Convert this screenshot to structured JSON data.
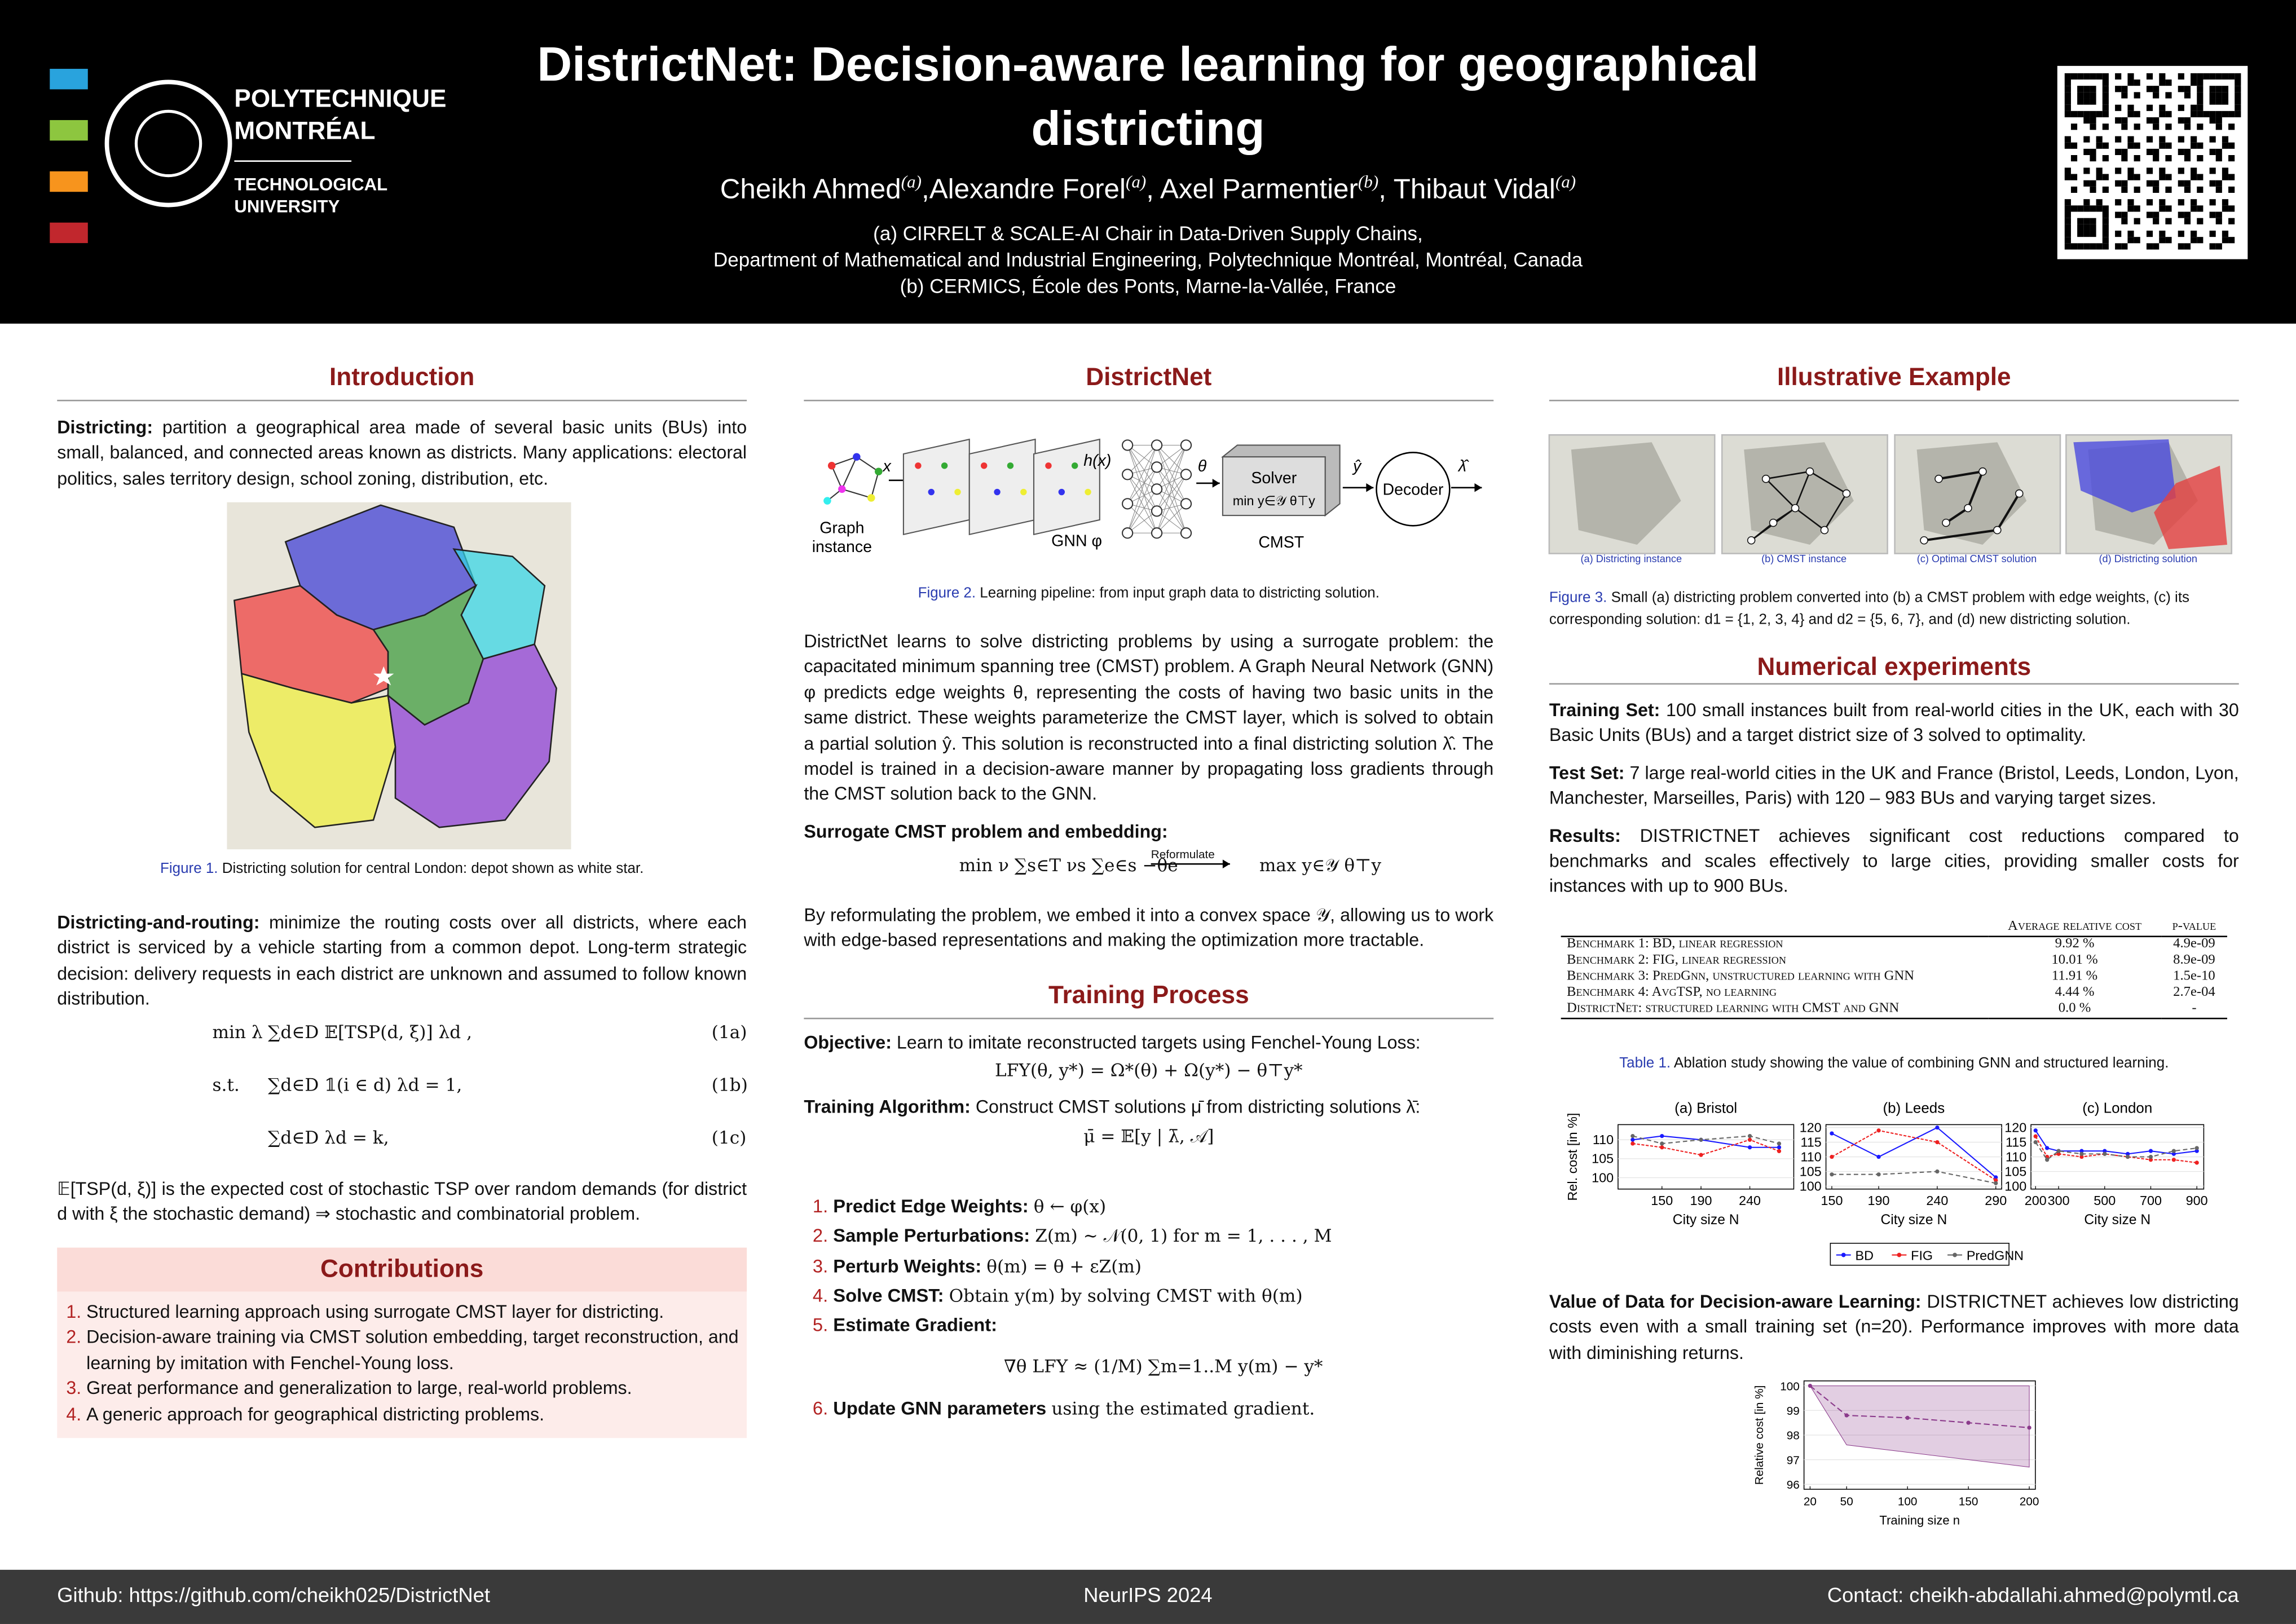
{
  "header": {
    "title": "DistrictNet: Decision-aware learning for geographical districting",
    "authors": [
      {
        "name": "Cheikh Ahmed",
        "aff": "(a)"
      },
      {
        "name": ",Alexandre Forel",
        "aff": "(a)"
      },
      {
        "name": ", Axel Parmentier",
        "aff": "(b)"
      },
      {
        "name": ", Thibaut Vidal",
        "aff": "(a)"
      }
    ],
    "affiliations": [
      "(a) CIRRELT & SCALE-AI Chair in Data-Driven Supply Chains,",
      "Department of Mathematical and Industrial Engineering, Polytechnique Montréal, Montréal, Canada",
      "(b) CERMICS, École des Ponts, Marne-la-Vallée, France"
    ],
    "logo": [
      "POLYTECHNIQUE",
      "MONTRÉAL",
      "TECHNOLOGICAL",
      "UNIVERSITY"
    ]
  },
  "introduction": {
    "heading": "Introduction",
    "districting": {
      "lead": "Districting:",
      "text": "partition a geographical area made of several basic units (BUs) into small, balanced, and connected areas known as districts. Many applications: electoral politics, sales territory design, school zoning, distribution, etc."
    },
    "figure_label": "Figure 1.",
    "figure_caption": "Districting solution for central London: depot shown as white star.",
    "routing": {
      "lead": "Districting-and-routing:",
      "text": "minimize the routing costs over all districts, where each district is serviced by a vehicle starting from a common depot. Long-term strategic decision: delivery requests in each district are unknown and assumed to follow known distribution."
    },
    "equations": [
      {
        "lhs": "min λ",
        "body": "∑d∈D 𝔼[TSP(d, ξ)] λd ,",
        "tag": "(1a)"
      },
      {
        "lhs": "s.t.",
        "body": "∑d∈D 𝟙(i ∈ d) λd = 1,",
        "tag": "(1b)"
      },
      {
        "body": "∑d∈D λd = k,",
        "tag": "(1c)"
      }
    ],
    "note": "𝔼[TSP(d, ξ)] is the expected cost of stochastic TSP over random demands (for district d with ξ the stochastic demand) ⇒ stochastic and combinatorial problem."
  },
  "contributions": {
    "heading": "Contributions",
    "items": [
      "Structured learning approach using surrogate CMST layer for districting.",
      "Decision-aware training via CMST solution embedding, target reconstruction, and learning by imitation with Fenchel-Young loss.",
      "Great performance and generalization to large, real-world problems.",
      "A generic approach for geographical districting problems."
    ]
  },
  "districtnet": {
    "heading": "DistrictNet",
    "diagram": {
      "graph_instance": [
        "Graph",
        "instance"
      ],
      "x": "x",
      "hx": "h(x)",
      "theta": "θ",
      "solver": "Solver",
      "solver_formula": "min y∈𝒴 θ⊤y",
      "yhat": "ŷ",
      "decoder": "Decoder",
      "lambdahat": "λ̂",
      "gnn": "GNN φ",
      "cmst": "CMST"
    },
    "figure_label": "Figure 2.",
    "figure_caption": "Learning pipeline: from input graph data to districting solution.",
    "paragraph": "DistrictNet learns to solve districting problems by using a surrogate problem: the capacitated minimum spanning tree (CMST) problem. A Graph Neural Network (GNN) φ predicts edge weights θ, representing the costs of having two basic units in the same district. These weights parameterize the CMST layer, which is solved to obtain a partial solution ŷ. This solution is reconstructed into a final districting solution λ̂. The model is trained in a decision-aware manner by propagating loss gradients through the CMST solution back to the GNN.",
    "surrogate_heading": "Surrogate CMST problem and embedding:",
    "surrogate_left": "min ν ∑s∈T νs ∑e∈s −θe",
    "surrogate_arrow": "Reformulate",
    "surrogate_right": "max y∈𝒴 θ⊤y",
    "paragraph2": "By reformulating the problem, we embed it into a convex space 𝒴, allowing us to work with edge-based representations and making the optimization more tractable."
  },
  "training": {
    "heading": "Training Process",
    "objective": {
      "lead": "Objective:",
      "text": "Learn to imitate reconstructed targets using Fenchel-Young Loss:"
    },
    "objective_formula": "LFY(θ, y*) = Ω*(θ) + Ω(y*) − θ⊤y*",
    "algorithm": {
      "lead": "Training Algorithm:",
      "text": "Construct CMST solutions μ̄ from districting solutions λ̄:"
    },
    "algorithm_formula": "μ̄ = 𝔼[y | λ̄, 𝒜]",
    "steps": [
      {
        "lead": "Predict Edge Weights:",
        "text": "θ ← φ(x)"
      },
      {
        "lead": "Sample Perturbations:",
        "text": "Z(m) ∼ 𝒩(0, 1) for m = 1, . . . , M"
      },
      {
        "lead": "Perturb Weights:",
        "text": "θ(m) = θ + εZ(m)"
      },
      {
        "lead": "Solve CMST:",
        "text": "Obtain y(m) by solving CMST with θ(m)"
      },
      {
        "lead": "Estimate Gradient:",
        "formula": "∇θ LFY ≈ (1/M) ∑m=1..M y(m) − y*"
      },
      {
        "lead": "Update GNN parameters",
        "text": "using the estimated gradient."
      }
    ]
  },
  "example": {
    "heading": "Illustrative Example",
    "panels": [
      "(a) Districting instance",
      "(b) CMST instance",
      "(c) Optimal CMST solution",
      "(d) Districting solution"
    ],
    "figure_label": "Figure 3.",
    "figure_caption": "Small (a) districting problem converted into (b) a CMST problem with edge weights, (c) its corresponding solution: d1 = {1, 2, 3, 4} and d2 = {5, 6, 7}, and (d) new districting solution."
  },
  "experiments": {
    "heading": "Numerical experiments",
    "training_set": {
      "lead": "Training Set:",
      "text": "100 small instances built from real-world cities in the UK, each with 30 Basic Units (BUs) and a target district size of 3 solved to optimality."
    },
    "test_set": {
      "lead": "Test Set:",
      "text": "7 large real-world cities in the UK and France (Bristol, Leeds, London, Lyon, Manchester, Marseilles, Paris) with 120 – 983 BUs and varying target sizes."
    },
    "results": {
      "lead": "Results:",
      "text": "DISTRICTNET achieves significant cost reductions compared to benchmarks and scales effectively to large cities, providing smaller costs for instances with up to 900 BUs."
    },
    "table": {
      "header": [
        "Average relative cost",
        "p-value"
      ],
      "rows": [
        [
          "Benchmark 1: BD, linear regression",
          "9.92 %",
          "4.9e-09"
        ],
        [
          "Benchmark 2: FIG, linear regression",
          "10.01 %",
          "8.9e-09"
        ],
        [
          "Benchmark 3: PredGnn, unstructured learning with GNN",
          "11.91 %",
          "1.5e-10"
        ],
        [
          "Benchmark 4: AvgTSP, no learning",
          "4.44 %",
          "2.7e-04"
        ],
        [
          "DistrictNet: structured learning with CMST and GNN",
          "0.0 %",
          "-"
        ]
      ],
      "label": "Table 1.",
      "caption": "Ablation study showing the value of combining GNN and structured learning."
    },
    "city_charts": [
      {
        "type": "line",
        "title": "(a) Bristol",
        "ylabel": "Rel. cost [in %]",
        "xlabel": "City size N",
        "x": [
          120,
          150,
          190,
          240,
          270
        ],
        "xlim": [
          105,
          285
        ],
        "xticks": [
          150,
          190,
          240
        ],
        "ylim": [
          97,
          114
        ],
        "yticks": [
          100,
          105,
          110
        ],
        "series": [
          {
            "name": "BD",
            "color": "#1a1aff",
            "values": [
              110,
              111,
              110,
              108,
              108
            ]
          },
          {
            "name": "FIG",
            "color": "#ee2020",
            "values": [
              109,
              108,
              106,
              110,
              107
            ]
          },
          {
            "name": "PredGNN",
            "color": "#666666",
            "values": [
              111,
              109,
              110,
              111,
              109
            ]
          }
        ]
      },
      {
        "type": "line",
        "title": "(b) Leeds",
        "xlabel": "City size N",
        "x": [
          150,
          190,
          240,
          290
        ],
        "xlim": [
          145,
          295
        ],
        "xticks": [
          150,
          190,
          240,
          290
        ],
        "ylim": [
          99,
          121
        ],
        "yticks": [
          100,
          105,
          110,
          115,
          120
        ],
        "series": [
          {
            "name": "BD",
            "color": "#1a1aff",
            "values": [
              118,
              110,
              120,
              103
            ]
          },
          {
            "name": "FIG",
            "color": "#ee2020",
            "values": [
              110,
              119,
              115,
              102
            ]
          },
          {
            "name": "PredGNN",
            "color": "#666666",
            "values": [
              104,
              104,
              105,
              101
            ]
          }
        ]
      },
      {
        "type": "line",
        "title": "(c) London",
        "xlabel": "City size N",
        "x": [
          200,
          250,
          300,
          400,
          500,
          600,
          700,
          800,
          900
        ],
        "xlim": [
          180,
          930
        ],
        "xticks": [
          200,
          300,
          500,
          700,
          900
        ],
        "ylim": [
          99,
          121
        ],
        "yticks": [
          100,
          105,
          110,
          115,
          120
        ],
        "series": [
          {
            "name": "BD",
            "color": "#1a1aff",
            "values": [
              119,
              113,
              112,
              112,
              112,
              111,
              112,
              111,
              112
            ]
          },
          {
            "name": "FIG",
            "color": "#ee2020",
            "values": [
              117,
              110,
              111,
              110,
              111,
              110,
              109,
              109,
              108
            ]
          },
          {
            "name": "PredGNN",
            "color": "#666666",
            "values": [
              115,
              109,
              112,
              111,
              111,
              110,
              110,
              112,
              113
            ]
          }
        ]
      }
    ],
    "value_of_data": {
      "lead": "Value of Data for Decision-aware Learning:",
      "text": "DISTRICTNET achieves low districting costs even with a small training set (n=20). Performance improves with more data with diminishing returns."
    },
    "training_chart": {
      "type": "line",
      "xlabel": "Training size n",
      "ylabel": "Relative cost [in %]",
      "x": [
        20,
        50,
        100,
        150,
        200
      ],
      "xlim": [
        15,
        205
      ],
      "xticks": [
        20,
        50,
        100,
        150,
        200
      ],
      "ylim": [
        95.8,
        100.2
      ],
      "yticks": [
        96,
        97,
        98,
        99,
        100
      ],
      "color": "#8b3a8b",
      "values": [
        100,
        98.8,
        98.7,
        98.5,
        98.3
      ],
      "band_low": [
        100,
        97.6,
        97.3,
        97.0,
        96.7
      ],
      "band_high": [
        100,
        100,
        100,
        100,
        100
      ]
    }
  },
  "footer": {
    "github": "Github: https://github.com/cheikh025/DistrictNet",
    "venue": "NeurIPS 2024",
    "contact": "Contact: cheikh-abdallahi.ahmed@polymtl.ca"
  }
}
